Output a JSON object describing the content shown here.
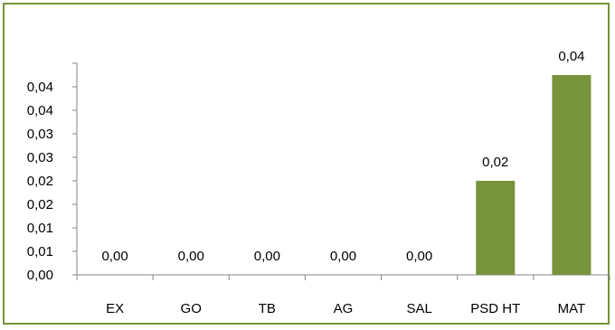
{
  "chart_data": {
    "type": "bar",
    "categories": [
      "EX",
      "GO",
      "TB",
      "AG",
      "SAL",
      "PSD HT",
      "MAT"
    ],
    "values": [
      0.0,
      0.0,
      0.0,
      0.0,
      0.0,
      0.02,
      0.0425
    ],
    "data_labels": [
      "0,00",
      "0,00",
      "0,00",
      "0,00",
      "0,00",
      "0,02",
      "0,04"
    ],
    "ylim": [
      0,
      0.045
    ],
    "y_ticks": [
      0,
      0.005,
      0.01,
      0.015,
      0.02,
      0.025,
      0.03,
      0.035,
      0.04,
      0.045
    ],
    "y_tick_labels": [
      "0,00",
      "0,01",
      "0,01",
      "0,02",
      "0,02",
      "0,03",
      "0,03",
      "0,04",
      "0,04",
      ""
    ],
    "bar_color": "#77933c",
    "border_color": "#77933c",
    "grid": false,
    "legend": "none"
  }
}
